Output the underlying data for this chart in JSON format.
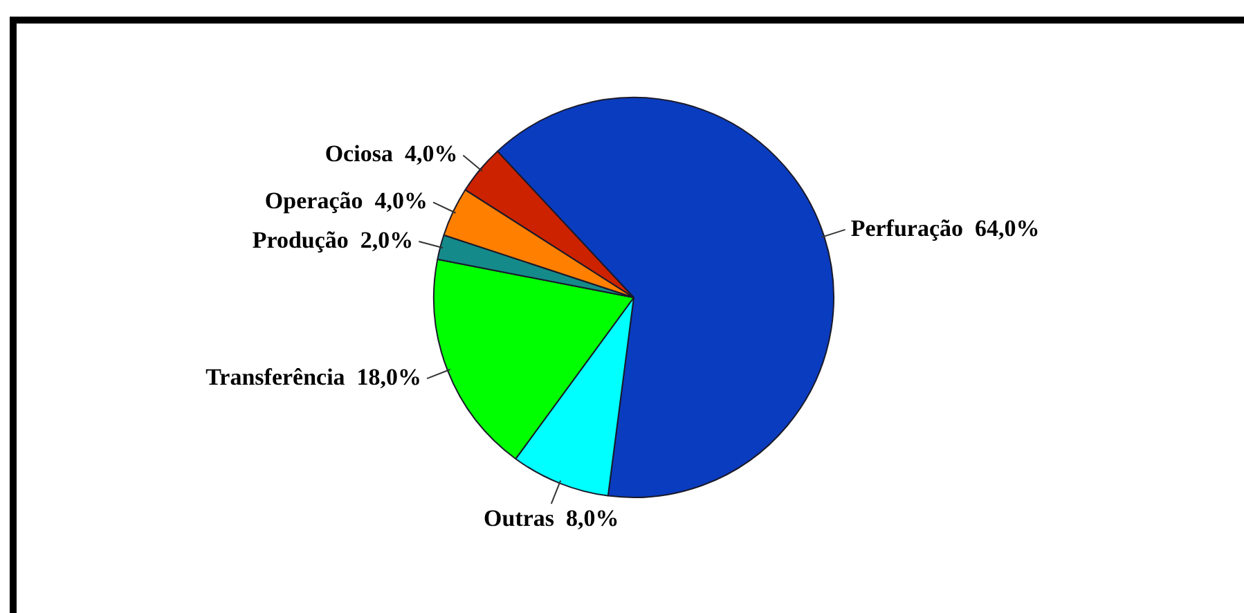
{
  "chart_data": {
    "type": "pie",
    "categories": [
      "Perfuração",
      "Outras",
      "Transferência",
      "Produção",
      "Operação",
      "Ociosa"
    ],
    "values": [
      64,
      8,
      18,
      2,
      4,
      4
    ],
    "colors": [
      "#0a3cc0",
      "#00ffff",
      "#00ff00",
      "#158a8a",
      "#ff7f00",
      "#cc2200"
    ],
    "value_labels": [
      "64,0%",
      "8,0%",
      "18,0%",
      "2,0%",
      "4,0%",
      "4,0%"
    ]
  }
}
